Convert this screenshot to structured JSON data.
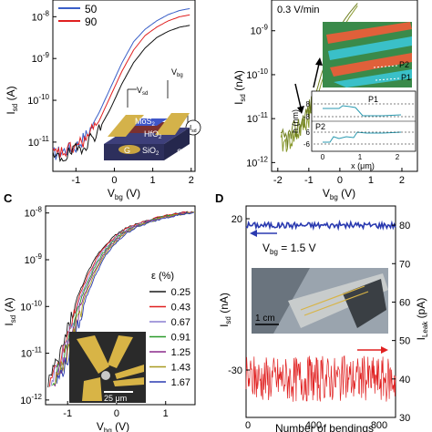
{
  "panels": {
    "A": {
      "legend": [
        {
          "label": "50",
          "color": "#3a5fc8"
        },
        {
          "label": "90",
          "color": "#e02020"
        }
      ],
      "ylabel": "I",
      "ylabel_sub": "sd",
      "ylabel_unit": "(A)",
      "xlabel": "V",
      "xlabel_sub": "bg",
      "xlabel_unit": "(V)",
      "yticks": [
        {
          "base": "10",
          "exp": "-8",
          "value": -8
        },
        {
          "base": "10",
          "exp": "-9",
          "value": -9
        },
        {
          "base": "10",
          "exp": "-10",
          "value": -10
        },
        {
          "base": "10",
          "exp": "-11",
          "value": -11
        }
      ],
      "xticks": [
        "-1",
        "0",
        "1",
        "2"
      ],
      "inset": {
        "vsd": "V",
        "vsd_sub": "sd",
        "vbg": "V",
        "vbg_sub": "bg",
        "isd": "I",
        "isd_sub": "sd",
        "mos2": "MoS",
        "mos2_sub": "2",
        "hfo2": "HfO",
        "hfo2_sub": "2",
        "sio2": "SiO",
        "sio2_sub": "2",
        "g": "G",
        "si": "Si"
      }
    },
    "B": {
      "rate": "0.3 V/min",
      "ylabel": "I",
      "ylabel_sub": "sd",
      "ylabel_unit": "(nA)",
      "xlabel": "V",
      "xlabel_sub": "bg",
      "xlabel_unit": "(V)",
      "yticks": [
        {
          "base": "10",
          "exp": "-9",
          "value": -9
        },
        {
          "base": "10",
          "exp": "-10",
          "value": -10
        },
        {
          "base": "10",
          "exp": "-11",
          "value": -11
        },
        {
          "base": "10",
          "exp": "-12",
          "value": -12
        }
      ],
      "xticks": [
        "-2",
        "-1",
        "0",
        "1",
        "2"
      ],
      "inset": {
        "p1": "P1",
        "p2": "P2",
        "hlabel": "h (nm)",
        "xlabel": "x (μm)",
        "ticks_top": [
          "8",
          "-8"
        ],
        "ticks_bot": [
          "6",
          "-6"
        ],
        "xticks": [
          "0",
          "1",
          "2"
        ]
      }
    },
    "C": {
      "label": "C",
      "ylabel": "I",
      "ylabel_sub": "sd",
      "ylabel_unit": "(A)",
      "xlabel": "V",
      "xlabel_sub": "bg",
      "xlabel_unit": "(V)",
      "yticks": [
        {
          "base": "10",
          "exp": "-8",
          "value": -8
        },
        {
          "base": "10",
          "exp": "-9",
          "value": -9
        },
        {
          "base": "10",
          "exp": "-10",
          "value": -10
        },
        {
          "base": "10",
          "exp": "-11",
          "value": -11
        },
        {
          "base": "10",
          "exp": "-12",
          "value": -12
        }
      ],
      "xticks": [
        "-1",
        "0",
        "1"
      ],
      "legend_title": "ε (%)",
      "scalebar": "25 μm"
    },
    "D": {
      "label": "D",
      "ylabel_left": "I",
      "ylabel_left_sub": "sd",
      "ylabel_left_unit": "(nA)",
      "ylabel_right": "I",
      "ylabel_right_sub": "Leak",
      "ylabel_right_unit": "(pA)",
      "xlabel": "Number of bendings",
      "vbg_text": "V",
      "vbg_sub": "bg",
      "vbg_value": "= 1.5 V",
      "photo_scale": "1 cm",
      "left_ticks": [
        "20",
        "-30"
      ],
      "right_ticks": [
        "80",
        "70",
        "60",
        "50",
        "40",
        "30"
      ],
      "xticks": [
        "0",
        "400",
        "800"
      ]
    }
  },
  "chart_data": [
    {
      "panel": "A",
      "type": "line",
      "yscale": "log",
      "xlabel": "Vbg (V)",
      "ylabel": "Isd (A)",
      "xlim": [
        -1.6,
        2.1
      ],
      "ylim_log10": [
        -11.7,
        -7.6
      ],
      "series": [
        {
          "name": "50",
          "color": "#3a5fc8",
          "x": [
            -1.6,
            -1.3,
            -1.0,
            -0.7,
            -0.4,
            -0.1,
            0.2,
            0.5,
            0.8,
            1.1,
            1.4,
            1.7,
            2.0
          ],
          "log10_y": [
            -11.3,
            -11.2,
            -11.1,
            -10.8,
            -10.3,
            -9.7,
            -9.1,
            -8.6,
            -8.3,
            -8.1,
            -7.95,
            -7.85,
            -7.8
          ]
        },
        {
          "name": "90",
          "color": "#e02020",
          "x": [
            -1.6,
            -1.3,
            -1.0,
            -0.7,
            -0.4,
            -0.1,
            0.2,
            0.5,
            0.8,
            1.1,
            1.4,
            1.7,
            2.0
          ],
          "log10_y": [
            -11.3,
            -11.25,
            -11.1,
            -10.9,
            -10.5,
            -9.9,
            -9.3,
            -8.8,
            -8.45,
            -8.25,
            -8.1,
            -8.0,
            -7.95
          ]
        },
        {
          "color": "#111111",
          "x": [
            -1.6,
            -1.3,
            -1.0,
            -0.7,
            -0.4,
            -0.1,
            0.2,
            0.5,
            0.8,
            1.1,
            1.4,
            1.7,
            2.0
          ],
          "log10_y": [
            -11.4,
            -11.35,
            -11.2,
            -11.0,
            -10.7,
            -10.2,
            -9.6,
            -9.1,
            -8.75,
            -8.5,
            -8.35,
            -8.25,
            -8.2
          ]
        }
      ]
    },
    {
      "panel": "B",
      "type": "line",
      "yscale": "log",
      "xlabel": "Vbg (V)",
      "ylabel": "Isd (nA)",
      "xlim": [
        -2.2,
        2.5
      ],
      "ylim_log10": [
        -12.2,
        -8.3
      ],
      "series": [
        {
          "color": "#8a9a30",
          "x": [
            -1.9,
            -1.6,
            -1.3,
            -1.0,
            -0.8,
            -0.6,
            -0.4,
            -0.2,
            0.0,
            0.3,
            0.6
          ],
          "log10_y": [
            -11.6,
            -11.5,
            -11.3,
            -11.0,
            -10.7,
            -10.2,
            -9.8,
            -9.4,
            -9.05,
            -8.7,
            -8.4
          ]
        },
        {
          "color": "#6f7f20",
          "x": [
            -1.9,
            -1.6,
            -1.3,
            -1.0,
            -0.8,
            -0.6,
            -0.4,
            -0.2,
            0.0,
            0.3,
            0.6
          ],
          "log10_y": [
            -11.5,
            -11.4,
            -11.15,
            -10.8,
            -10.5,
            -10.0,
            -9.6,
            -9.2,
            -8.9,
            -8.6,
            -8.35
          ]
        }
      ]
    },
    {
      "panel": "C",
      "type": "line",
      "yscale": "log",
      "xlabel": "Vbg (V)",
      "ylabel": "Isd (A)",
      "xlim": [
        -1.45,
        1.6
      ],
      "ylim_log10": [
        -12.1,
        -7.85
      ],
      "legend_title": "ε (%)",
      "series": [
        {
          "name": "0.25",
          "color": "#1a1a1a",
          "shift": 0.0
        },
        {
          "name": "0.43",
          "color": "#e02020",
          "shift": 0.06
        },
        {
          "name": "0.67",
          "color": "#8a7fd0",
          "shift": 0.12
        },
        {
          "name": "0.91",
          "color": "#2a9a2a",
          "shift": 0.18
        },
        {
          "name": "1.25",
          "color": "#8a2a8a",
          "shift": 0.24
        },
        {
          "name": "1.43",
          "color": "#a89a20",
          "shift": 0.3
        },
        {
          "name": "1.67",
          "color": "#2a3ab0",
          "shift": 0.36
        }
      ],
      "base_x": [
        -1.4,
        -1.2,
        -1.0,
        -0.8,
        -0.6,
        -0.4,
        -0.2,
        0.0,
        0.2,
        0.5,
        0.8,
        1.1,
        1.5
      ],
      "base_log10_y": [
        -11.6,
        -11.2,
        -10.5,
        -9.8,
        -9.3,
        -8.9,
        -8.65,
        -8.45,
        -8.32,
        -8.2,
        -8.1,
        -8.04,
        -7.97
      ]
    },
    {
      "panel": "D",
      "type": "line",
      "xlabel": "Number of bendings",
      "ylabel": "Isd (nA)",
      "ylabel_right": "ILeak (pA)",
      "xlim": [
        0,
        900
      ],
      "ylim_right": [
        30,
        85
      ],
      "series": [
        {
          "name": "Isd",
          "color": "#2a3ab0",
          "axis": "right",
          "mean": 80,
          "noise": 0.8
        },
        {
          "name": "ILeak",
          "color": "#e02020",
          "axis": "right",
          "mean": 40,
          "noise": 6
        }
      ]
    }
  ]
}
